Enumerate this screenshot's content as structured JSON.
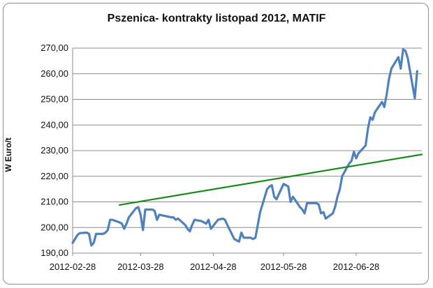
{
  "chart_data": {
    "type": "line",
    "title": "Pszenica- kontrakty listopad 2012, MATIF",
    "xlabel": "",
    "ylabel": "W Euro/t",
    "ylim": [
      190,
      270
    ],
    "yticks": [
      "190,00",
      "200,00",
      "210,00",
      "220,00",
      "230,00",
      "240,00",
      "250,00",
      "260,00",
      "270,00"
    ],
    "xticks": [
      "2012-02-28",
      "2012-03-28",
      "2012-04-28",
      "2012-05-28",
      "2012-06-28"
    ],
    "grid": true,
    "legend": "none",
    "colors": {
      "price": "#4f81bd",
      "trend": "#1a8a1a",
      "grid": "#8c8c8c"
    },
    "series": [
      {
        "values": [
          [
            "2012-02-28",
            194.0
          ],
          [
            "2012-02-29",
            195.5
          ],
          [
            "2012-03-01",
            197.0
          ],
          [
            "2012-03-02",
            197.8
          ],
          [
            "2012-03-05",
            198.0
          ],
          [
            "2012-03-06",
            197.5
          ],
          [
            "2012-03-07",
            193.0
          ],
          [
            "2012-03-08",
            194.0
          ],
          [
            "2012-03-09",
            197.5
          ],
          [
            "2012-03-12",
            197.5
          ],
          [
            "2012-03-13",
            198.0
          ],
          [
            "2012-03-14",
            199.0
          ],
          [
            "2012-03-15",
            203.0
          ],
          [
            "2012-03-16",
            203.0
          ],
          [
            "2012-03-19",
            202.0
          ],
          [
            "2012-03-20",
            201.5
          ],
          [
            "2012-03-21",
            199.5
          ],
          [
            "2012-03-22",
            201.5
          ],
          [
            "2012-03-23",
            204.0
          ],
          [
            "2012-03-26",
            207.5
          ],
          [
            "2012-03-27",
            208.0
          ],
          [
            "2012-03-28",
            205.0
          ],
          [
            "2012-03-29",
            199.0
          ],
          [
            "2012-03-30",
            207.0
          ],
          [
            "2012-04-02",
            207.0
          ],
          [
            "2012-04-03",
            206.5
          ],
          [
            "2012-04-04",
            203.0
          ],
          [
            "2012-04-05",
            205.0
          ],
          [
            "2012-04-10",
            204.0
          ],
          [
            "2012-04-11",
            204.0
          ],
          [
            "2012-04-12",
            203.0
          ],
          [
            "2012-04-13",
            203.5
          ],
          [
            "2012-04-16",
            201.0
          ],
          [
            "2012-04-17",
            199.5
          ],
          [
            "2012-04-18",
            198.5
          ],
          [
            "2012-04-19",
            201.0
          ],
          [
            "2012-04-20",
            203.0
          ],
          [
            "2012-04-23",
            202.5
          ],
          [
            "2012-04-24",
            202.0
          ],
          [
            "2012-04-25",
            201.5
          ],
          [
            "2012-04-26",
            203.0
          ],
          [
            "2012-04-27",
            199.5
          ],
          [
            "2012-04-30",
            203.0
          ],
          [
            "2012-05-02",
            203.5
          ],
          [
            "2012-05-03",
            203.0
          ],
          [
            "2012-05-04",
            201.0
          ],
          [
            "2012-05-07",
            195.5
          ],
          [
            "2012-05-08",
            195.0
          ],
          [
            "2012-05-09",
            194.5
          ],
          [
            "2012-05-10",
            198.0
          ],
          [
            "2012-05-11",
            196.0
          ],
          [
            "2012-05-14",
            196.0
          ],
          [
            "2012-05-15",
            195.5
          ],
          [
            "2012-05-16",
            196.0
          ],
          [
            "2012-05-17",
            201.0
          ],
          [
            "2012-05-18",
            206.0
          ],
          [
            "2012-05-21",
            215.0
          ],
          [
            "2012-05-22",
            216.0
          ],
          [
            "2012-05-23",
            216.5
          ],
          [
            "2012-05-24",
            212.0
          ],
          [
            "2012-05-25",
            211.0
          ],
          [
            "2012-05-28",
            217.0
          ],
          [
            "2012-05-29",
            216.5
          ],
          [
            "2012-05-30",
            216.0
          ],
          [
            "2012-05-31",
            210.0
          ],
          [
            "2012-06-01",
            212.0
          ],
          [
            "2012-06-04",
            208.0
          ],
          [
            "2012-06-05",
            207.0
          ],
          [
            "2012-06-06",
            205.5
          ],
          [
            "2012-06-07",
            209.5
          ],
          [
            "2012-06-08",
            209.5
          ],
          [
            "2012-06-11",
            209.5
          ],
          [
            "2012-06-12",
            209.0
          ],
          [
            "2012-06-13",
            205.5
          ],
          [
            "2012-06-14",
            206.0
          ],
          [
            "2012-06-15",
            203.5
          ],
          [
            "2012-06-18",
            205.5
          ],
          [
            "2012-06-19",
            208.0
          ],
          [
            "2012-06-20",
            212.0
          ],
          [
            "2012-06-21",
            215.0
          ],
          [
            "2012-06-22",
            220.0
          ],
          [
            "2012-06-25",
            225.0
          ],
          [
            "2012-06-26",
            226.0
          ],
          [
            "2012-06-27",
            229.5
          ],
          [
            "2012-06-28",
            227.0
          ],
          [
            "2012-06-29",
            229.0
          ],
          [
            "2012-07-02",
            232.0
          ],
          [
            "2012-07-03",
            238.5
          ],
          [
            "2012-07-04",
            243.0
          ],
          [
            "2012-07-05",
            242.0
          ],
          [
            "2012-07-06",
            245.0
          ],
          [
            "2012-07-09",
            249.0
          ],
          [
            "2012-07-10",
            247.0
          ],
          [
            "2012-07-11",
            252.0
          ],
          [
            "2012-07-12",
            258.0
          ],
          [
            "2012-07-13",
            262.0
          ],
          [
            "2012-07-16",
            266.5
          ],
          [
            "2012-07-17",
            262.0
          ],
          [
            "2012-07-18",
            269.5
          ],
          [
            "2012-07-19",
            269.0
          ],
          [
            "2012-07-20",
            266.0
          ],
          [
            "2012-07-23",
            250.5
          ],
          [
            "2012-07-24",
            261.0
          ]
        ]
      },
      {
        "values": [
          [
            "2012-03-19",
            208.8
          ],
          [
            "2012-07-26",
            228.5
          ]
        ]
      }
    ]
  }
}
